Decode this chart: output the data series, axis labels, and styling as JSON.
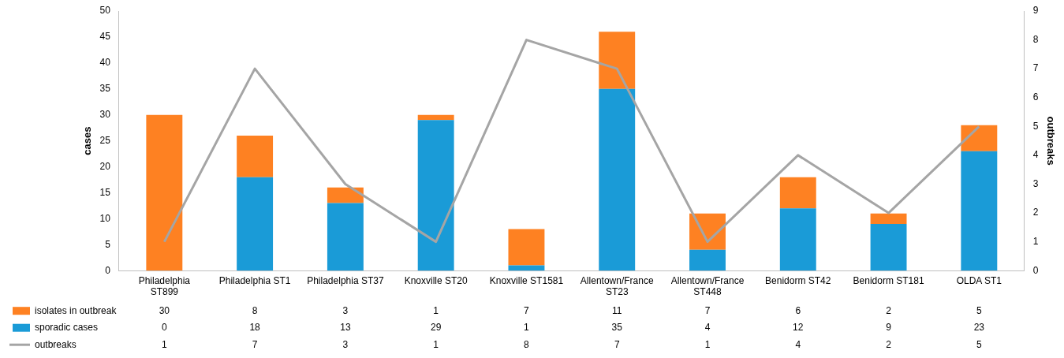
{
  "chart_data": {
    "type": "bar",
    "stacked": true,
    "categories": [
      "Philadelphia ST899",
      "Philadelphia ST1",
      "Philadelphia ST37",
      "Knoxville ST20",
      "Knoxville ST1581",
      "Allentown/France ST23",
      "Allentown/France ST448",
      "Benidorm ST42",
      "Benidorm ST181",
      "OLDA ST1"
    ],
    "series": [
      {
        "name": "sporadic cases",
        "color": "#1a9bd7",
        "values": [
          0,
          18,
          13,
          29,
          1,
          35,
          4,
          12,
          9,
          23
        ]
      },
      {
        "name": "isolates in outbreak",
        "color": "#fe8122",
        "values": [
          30,
          8,
          3,
          1,
          7,
          11,
          7,
          6,
          2,
          5
        ]
      },
      {
        "name": "outbreaks",
        "type": "line",
        "axis": "y2",
        "color": "#a5a5a5",
        "values": [
          1,
          7,
          3,
          1,
          8,
          7,
          1,
          4,
          2,
          5
        ]
      }
    ],
    "ylabel": "cases",
    "y2label": "outbreaks",
    "ylim": [
      0,
      50
    ],
    "yticks": [
      0,
      5,
      10,
      15,
      20,
      25,
      30,
      35,
      40,
      45,
      50
    ],
    "y2lim": [
      0,
      9
    ],
    "y2ticks": [
      0,
      1,
      2,
      3,
      4,
      5,
      6,
      7,
      8,
      9
    ],
    "data_labels": true,
    "legend": "bottom left",
    "grid": false,
    "marker": "none",
    "line_style": "solid"
  }
}
